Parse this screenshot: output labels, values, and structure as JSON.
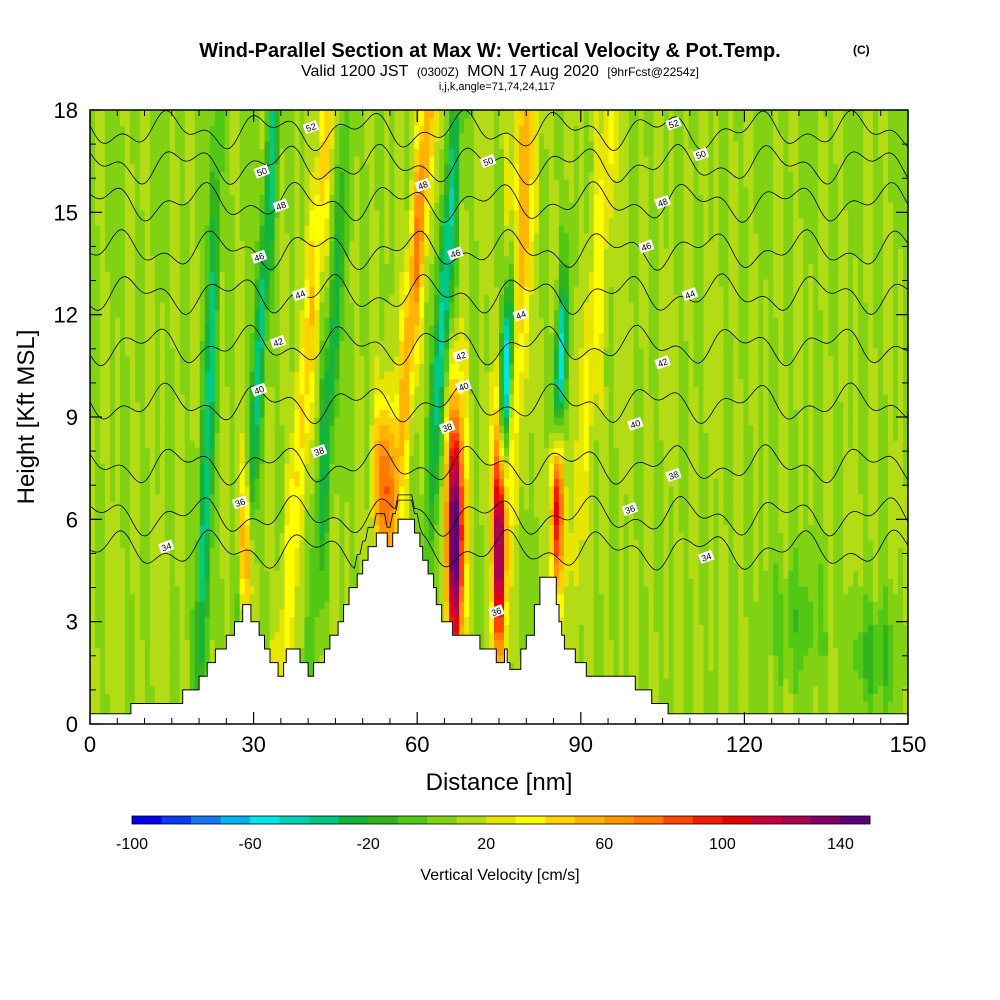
{
  "header": {
    "title": "Wind-Parallel Section at Max W: Vertical Velocity & Pot.Temp.",
    "copyright": "(C)",
    "valid_prefix": "Valid 1200 JST",
    "utc": "(0300Z)",
    "valid_date": "MON 17 Aug 2020",
    "forecast": "[9hrFcst@2254z]",
    "indices": "i,j,k,angle=71,74,24,117"
  },
  "chart_data": {
    "type": "heatmap",
    "xlabel": "Distance [nm]",
    "ylabel": "Height [Kft MSL]",
    "xlim": [
      0,
      150
    ],
    "ylim": [
      0,
      18
    ],
    "x_ticks": [
      0,
      30,
      60,
      90,
      120,
      150
    ],
    "y_ticks": [
      0,
      3,
      6,
      9,
      12,
      15,
      18
    ],
    "x_tick_labels": [
      "0",
      "30",
      "60",
      "90",
      "120",
      "150"
    ],
    "y_tick_labels": [
      "0",
      "3",
      "6",
      "9",
      "12",
      "15",
      "18"
    ],
    "background_value": 10,
    "updrafts": [
      {
        "x": 21.5,
        "y": 8,
        "width": 1.2,
        "height": 10,
        "amplitude": -50,
        "tilt": 2
      },
      {
        "x": 28.5,
        "y": 5,
        "width": 1.1,
        "height": 2.5,
        "amplitude": 80,
        "tilt": 0
      },
      {
        "x": 31.5,
        "y": 12,
        "width": 1.3,
        "height": 14,
        "amplitude": -45,
        "tilt": 4
      },
      {
        "x": 40.5,
        "y": 12,
        "width": 1.6,
        "height": 14,
        "amplitude": 35,
        "tilt": 5
      },
      {
        "x": 44,
        "y": 10,
        "width": 1.4,
        "height": 8,
        "amplitude": -40,
        "tilt": 4
      },
      {
        "x": 54,
        "y": 7,
        "width": 2,
        "height": 2.5,
        "amplitude": 70,
        "tilt": 0
      },
      {
        "x": 60,
        "y": 14,
        "width": 1.6,
        "height": 8,
        "amplitude": 60,
        "tilt": 5
      },
      {
        "x": 67,
        "y": 5.5,
        "width": 1.6,
        "height": 4,
        "amplitude": 145,
        "tilt": 0
      },
      {
        "x": 65,
        "y": 12.5,
        "width": 1.5,
        "height": 7,
        "amplitude": -55,
        "tilt": 4
      },
      {
        "x": 75,
        "y": 5.5,
        "width": 1.3,
        "height": 3.5,
        "amplitude": 135,
        "tilt": 0
      },
      {
        "x": 76.5,
        "y": 10.5,
        "width": 1.2,
        "height": 3.5,
        "amplitude": -100,
        "tilt": 3
      },
      {
        "x": 79,
        "y": 14.5,
        "width": 2,
        "height": 7,
        "amplitude": 55,
        "tilt": 3
      },
      {
        "x": 85.5,
        "y": 6.5,
        "width": 1.3,
        "height": 2.5,
        "amplitude": 100,
        "tilt": 0
      },
      {
        "x": 86,
        "y": 10,
        "width": 1.1,
        "height": 3,
        "amplitude": -75,
        "tilt": 3
      },
      {
        "x": 93,
        "y": 13,
        "width": 1.8,
        "height": 10,
        "amplitude": 25,
        "tilt": 5
      },
      {
        "x": 130,
        "y": 3,
        "width": 5,
        "height": 2,
        "amplitude": -15,
        "tilt": 0
      },
      {
        "x": 144,
        "y": 2,
        "width": 4,
        "height": 1.5,
        "amplitude": -25,
        "tilt": 0
      }
    ],
    "terrain": [
      {
        "x": 0,
        "y": 0.3
      },
      {
        "x": 7.5,
        "y": 0.3
      },
      {
        "x": 7.5,
        "y": 0.6
      },
      {
        "x": 17,
        "y": 0.6
      },
      {
        "x": 17,
        "y": 1
      },
      {
        "x": 20,
        "y": 1
      },
      {
        "x": 20,
        "y": 1.4
      },
      {
        "x": 21.5,
        "y": 1.4
      },
      {
        "x": 21.5,
        "y": 1.8
      },
      {
        "x": 23,
        "y": 1.8
      },
      {
        "x": 23,
        "y": 2.2
      },
      {
        "x": 25,
        "y": 2.2
      },
      {
        "x": 25,
        "y": 2.6
      },
      {
        "x": 26.5,
        "y": 2.6
      },
      {
        "x": 26.5,
        "y": 3
      },
      {
        "x": 28,
        "y": 3
      },
      {
        "x": 28,
        "y": 3.5
      },
      {
        "x": 29.5,
        "y": 3.5
      },
      {
        "x": 29.5,
        "y": 3
      },
      {
        "x": 31,
        "y": 3
      },
      {
        "x": 31,
        "y": 2.6
      },
      {
        "x": 32,
        "y": 2.6
      },
      {
        "x": 32,
        "y": 2.2
      },
      {
        "x": 33,
        "y": 2.2
      },
      {
        "x": 33,
        "y": 1.8
      },
      {
        "x": 34.5,
        "y": 1.8
      },
      {
        "x": 34.5,
        "y": 1.4
      },
      {
        "x": 35.5,
        "y": 1.4
      },
      {
        "x": 35.5,
        "y": 1.8
      },
      {
        "x": 36,
        "y": 1.8
      },
      {
        "x": 36,
        "y": 2.2
      },
      {
        "x": 38.5,
        "y": 2.2
      },
      {
        "x": 38.5,
        "y": 1.8
      },
      {
        "x": 40,
        "y": 1.8
      },
      {
        "x": 40,
        "y": 1.4
      },
      {
        "x": 41,
        "y": 1.4
      },
      {
        "x": 41,
        "y": 1.8
      },
      {
        "x": 43,
        "y": 1.8
      },
      {
        "x": 43,
        "y": 2.2
      },
      {
        "x": 44,
        "y": 2.2
      },
      {
        "x": 44,
        "y": 2.6
      },
      {
        "x": 45.5,
        "y": 2.6
      },
      {
        "x": 45.5,
        "y": 3
      },
      {
        "x": 46.5,
        "y": 3
      },
      {
        "x": 46.5,
        "y": 3.5
      },
      {
        "x": 47.5,
        "y": 3.5
      },
      {
        "x": 47.5,
        "y": 4
      },
      {
        "x": 49,
        "y": 4
      },
      {
        "x": 49,
        "y": 4.4
      },
      {
        "x": 50,
        "y": 4.4
      },
      {
        "x": 50,
        "y": 4.8
      },
      {
        "x": 51,
        "y": 4.8
      },
      {
        "x": 51,
        "y": 5.2
      },
      {
        "x": 52.5,
        "y": 5.2
      },
      {
        "x": 52.5,
        "y": 5.6
      },
      {
        "x": 54.5,
        "y": 5.6
      },
      {
        "x": 54.5,
        "y": 5.2
      },
      {
        "x": 55.5,
        "y": 5.2
      },
      {
        "x": 55.5,
        "y": 5.6
      },
      {
        "x": 56.5,
        "y": 5.6
      },
      {
        "x": 56.5,
        "y": 6
      },
      {
        "x": 59.5,
        "y": 6
      },
      {
        "x": 59.5,
        "y": 5.6
      },
      {
        "x": 60.5,
        "y": 5.6
      },
      {
        "x": 60.5,
        "y": 5.2
      },
      {
        "x": 61,
        "y": 5.2
      },
      {
        "x": 61,
        "y": 4.8
      },
      {
        "x": 62,
        "y": 4.8
      },
      {
        "x": 62,
        "y": 4.4
      },
      {
        "x": 63,
        "y": 4.4
      },
      {
        "x": 63,
        "y": 4
      },
      {
        "x": 63.5,
        "y": 4
      },
      {
        "x": 63.5,
        "y": 3.5
      },
      {
        "x": 64.5,
        "y": 3.5
      },
      {
        "x": 64.5,
        "y": 3
      },
      {
        "x": 66.5,
        "y": 3
      },
      {
        "x": 66.5,
        "y": 2.6
      },
      {
        "x": 71.5,
        "y": 2.6
      },
      {
        "x": 71.5,
        "y": 2.2
      },
      {
        "x": 74.5,
        "y": 2.2
      },
      {
        "x": 74.5,
        "y": 1.8
      },
      {
        "x": 76,
        "y": 1.8
      },
      {
        "x": 76,
        "y": 2.2
      },
      {
        "x": 76.5,
        "y": 2.2
      },
      {
        "x": 76.5,
        "y": 1.8
      },
      {
        "x": 77,
        "y": 1.8
      },
      {
        "x": 77,
        "y": 1.6
      },
      {
        "x": 79,
        "y": 1.6
      },
      {
        "x": 79,
        "y": 2.2
      },
      {
        "x": 80,
        "y": 2.2
      },
      {
        "x": 80,
        "y": 2.6
      },
      {
        "x": 81.5,
        "y": 2.6
      },
      {
        "x": 81.5,
        "y": 3.5
      },
      {
        "x": 82.5,
        "y": 3.5
      },
      {
        "x": 82.5,
        "y": 4.3
      },
      {
        "x": 85.5,
        "y": 4.3
      },
      {
        "x": 85.5,
        "y": 3.5
      },
      {
        "x": 86,
        "y": 3.5
      },
      {
        "x": 86,
        "y": 3
      },
      {
        "x": 86.5,
        "y": 3
      },
      {
        "x": 86.5,
        "y": 2.6
      },
      {
        "x": 87,
        "y": 2.6
      },
      {
        "x": 87,
        "y": 2.2
      },
      {
        "x": 89,
        "y": 2.2
      },
      {
        "x": 89,
        "y": 1.8
      },
      {
        "x": 91,
        "y": 1.8
      },
      {
        "x": 91,
        "y": 1.4
      },
      {
        "x": 100,
        "y": 1.4
      },
      {
        "x": 100,
        "y": 1
      },
      {
        "x": 103,
        "y": 1
      },
      {
        "x": 103,
        "y": 0.6
      },
      {
        "x": 106,
        "y": 0.6
      },
      {
        "x": 106,
        "y": 0.3
      },
      {
        "x": 150,
        "y": 0.3
      }
    ],
    "theta_contours": [
      {
        "value": 34,
        "base": 5.1
      },
      {
        "value": 36,
        "base": 6.1
      },
      {
        "value": 38,
        "base": 7.6
      },
      {
        "value": 40,
        "base": 9.4
      },
      {
        "value": 42,
        "base": 11.1
      },
      {
        "value": 44,
        "base": 12.6
      },
      {
        "value": 46,
        "base": 13.9
      },
      {
        "value": 48,
        "base": 15.3
      },
      {
        "value": 50,
        "base": 16.4
      },
      {
        "value": 52,
        "base": 17.4
      }
    ],
    "contour_labels": [
      {
        "text": "34",
        "x": 14,
        "y": 5.2
      },
      {
        "text": "36",
        "x": 27.5,
        "y": 6.5
      },
      {
        "text": "38",
        "x": 42,
        "y": 8
      },
      {
        "text": "40",
        "x": 31,
        "y": 9.8
      },
      {
        "text": "42",
        "x": 34.5,
        "y": 11.2
      },
      {
        "text": "44",
        "x": 38.5,
        "y": 12.6
      },
      {
        "text": "46",
        "x": 31,
        "y": 13.7
      },
      {
        "text": "48",
        "x": 35,
        "y": 15.2
      },
      {
        "text": "50",
        "x": 31.5,
        "y": 16.2
      },
      {
        "text": "52",
        "x": 40.5,
        "y": 17.5
      },
      {
        "text": "48",
        "x": 61,
        "y": 15.8
      },
      {
        "text": "46",
        "x": 67,
        "y": 13.8
      },
      {
        "text": "50",
        "x": 73,
        "y": 16.5
      },
      {
        "text": "44",
        "x": 79,
        "y": 12
      },
      {
        "text": "42",
        "x": 68,
        "y": 10.8
      },
      {
        "text": "40",
        "x": 68.5,
        "y": 9.9
      },
      {
        "text": "38",
        "x": 65.5,
        "y": 8.7
      },
      {
        "text": "36",
        "x": 74.5,
        "y": 3.3
      },
      {
        "text": "52",
        "x": 107,
        "y": 17.6
      },
      {
        "text": "50",
        "x": 112,
        "y": 16.7
      },
      {
        "text": "48",
        "x": 105,
        "y": 15.3
      },
      {
        "text": "46",
        "x": 102,
        "y": 14
      },
      {
        "text": "44",
        "x": 110,
        "y": 12.6
      },
      {
        "text": "42",
        "x": 105,
        "y": 10.6
      },
      {
        "text": "40",
        "x": 100,
        "y": 8.8
      },
      {
        "text": "38",
        "x": 107,
        "y": 7.3
      },
      {
        "text": "36",
        "x": 99,
        "y": 6.3
      },
      {
        "text": "34",
        "x": 113,
        "y": 4.9
      }
    ],
    "colorbar": {
      "label": "Vertical Velocity [cm/s]",
      "min": -100,
      "max": 150,
      "step": 10,
      "tick_values": [
        -100,
        -60,
        -20,
        20,
        60,
        100,
        140
      ],
      "tick_labels": [
        "-100",
        "-60",
        "-20",
        "20",
        "60",
        "100",
        "140"
      ],
      "colors": [
        "#0000f0",
        "#0a3cf0",
        "#1478f0",
        "#00b4f0",
        "#00e6e6",
        "#00d2b4",
        "#00c882",
        "#14b43c",
        "#32b41e",
        "#50c814",
        "#82d214",
        "#b4dc14",
        "#e6e600",
        "#ffff00",
        "#ffd200",
        "#ffb400",
        "#ff9600",
        "#ff7800",
        "#ff4600",
        "#f01e00",
        "#e6000a",
        "#c8003c",
        "#aa0050",
        "#820064",
        "#5a0078"
      ]
    }
  }
}
